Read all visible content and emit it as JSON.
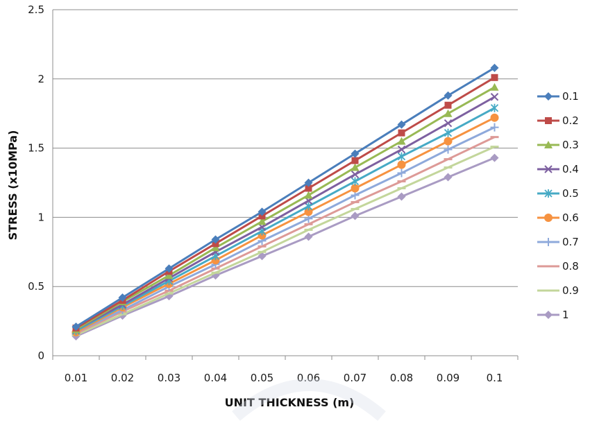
{
  "chart_data": {
    "type": "line",
    "title": "",
    "xlabel": "UNIT THICKNESS (m)",
    "ylabel": "STRESS (x10MPa)",
    "categories": [
      "0.01",
      "0.02",
      "0.03",
      "0.04",
      "0.05",
      "0.06",
      "0.07",
      "0.08",
      "0.09",
      "0.1"
    ],
    "ylim": [
      0,
      2.5
    ],
    "yticks": [
      "0",
      "0.5",
      "1",
      "1.5",
      "2",
      "2.5"
    ],
    "grid": "horizontal",
    "legend_position": "right",
    "series": [
      {
        "name": "0.1",
        "color": "#4a7ebb",
        "marker": "diamond",
        "values": [
          0.21,
          0.42,
          0.63,
          0.84,
          1.04,
          1.25,
          1.46,
          1.67,
          1.88,
          2.08
        ]
      },
      {
        "name": "0.2",
        "color": "#be4b48",
        "marker": "square",
        "values": [
          0.2,
          0.4,
          0.61,
          0.81,
          1.01,
          1.21,
          1.41,
          1.61,
          1.81,
          2.01
        ]
      },
      {
        "name": "0.3",
        "color": "#98b954",
        "marker": "triangle",
        "values": [
          0.19,
          0.39,
          0.58,
          0.78,
          0.97,
          1.16,
          1.36,
          1.55,
          1.75,
          1.94
        ]
      },
      {
        "name": "0.4",
        "color": "#7d60a0",
        "marker": "x",
        "values": [
          0.19,
          0.37,
          0.56,
          0.75,
          0.93,
          1.12,
          1.31,
          1.49,
          1.68,
          1.87
        ]
      },
      {
        "name": "0.5",
        "color": "#46aac5",
        "marker": "star",
        "values": [
          0.18,
          0.36,
          0.54,
          0.72,
          0.9,
          1.08,
          1.26,
          1.44,
          1.61,
          1.79
        ]
      },
      {
        "name": "0.6",
        "color": "#f69240",
        "marker": "circle",
        "values": [
          0.17,
          0.35,
          0.52,
          0.69,
          0.87,
          1.04,
          1.21,
          1.38,
          1.55,
          1.72
        ]
      },
      {
        "name": "0.7",
        "color": "#8ea9db",
        "marker": "plus",
        "values": [
          0.17,
          0.33,
          0.5,
          0.66,
          0.83,
          0.99,
          1.16,
          1.32,
          1.49,
          1.65
        ]
      },
      {
        "name": "0.8",
        "color": "#dd9a97",
        "marker": "dash",
        "values": [
          0.16,
          0.32,
          0.47,
          0.63,
          0.79,
          0.95,
          1.11,
          1.26,
          1.42,
          1.58
        ]
      },
      {
        "name": "0.9",
        "color": "#c3d69b",
        "marker": "dash",
        "values": [
          0.15,
          0.3,
          0.45,
          0.6,
          0.75,
          0.91,
          1.06,
          1.21,
          1.36,
          1.51
        ]
      },
      {
        "name": "1",
        "color": "#a99bc3",
        "marker": "diamond",
        "values": [
          0.14,
          0.29,
          0.43,
          0.58,
          0.72,
          0.86,
          1.01,
          1.15,
          1.29,
          1.43
        ]
      }
    ]
  }
}
